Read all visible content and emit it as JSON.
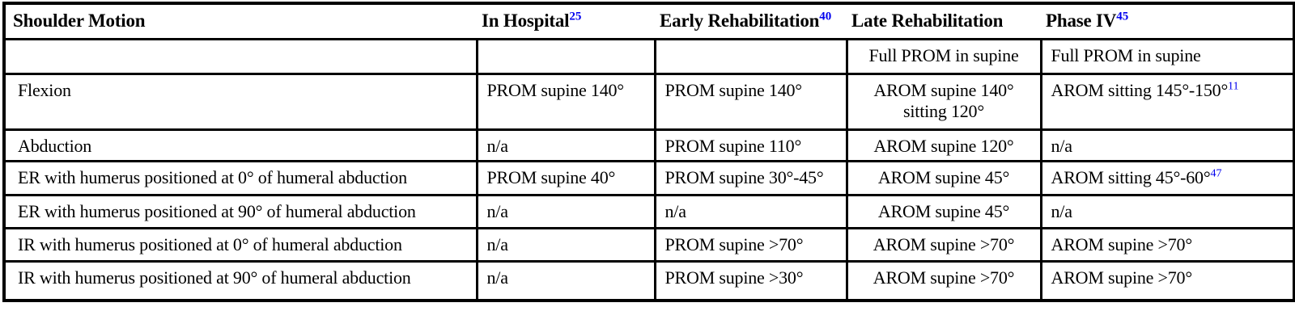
{
  "title": "Shoulder motion range-of-motion goals by rehabilitation phase",
  "colors": {
    "citation": "#0000EE",
    "border": "#000000",
    "text": "#000000",
    "background": "#ffffff"
  },
  "table": {
    "columns": [
      {
        "label": "Shoulder Motion",
        "sup": ""
      },
      {
        "label": "In Hospital",
        "sup": "25"
      },
      {
        "label": "Early Rehabilitation",
        "sup": "40"
      },
      {
        "label": "Late Rehabilitation",
        "sup": ""
      },
      {
        "label": "Phase IV",
        "sup": "45"
      }
    ],
    "rows": [
      {
        "cells": [
          {
            "lines": []
          },
          {
            "lines": []
          },
          {
            "lines": []
          },
          {
            "lines": [
              {
                "text": "Full PROM in supine"
              }
            ]
          },
          {
            "lines": [
              {
                "text": "Full PROM in supine"
              }
            ]
          }
        ]
      },
      {
        "cells": [
          {
            "lines": [
              {
                "text": "Flexion"
              }
            ]
          },
          {
            "lines": [
              {
                "text": "PROM supine 140°"
              }
            ]
          },
          {
            "lines": [
              {
                "text": "PROM supine 140°"
              }
            ]
          },
          {
            "lines": [
              {
                "text": "AROM supine 140°"
              },
              {
                "text": "sitting 120°"
              }
            ]
          },
          {
            "lines": [
              {
                "text": "AROM sitting 145°-150°",
                "sup": "11"
              }
            ]
          }
        ]
      },
      {
        "cells": [
          {
            "lines": [
              {
                "text": "Abduction"
              }
            ]
          },
          {
            "lines": [
              {
                "text": "n/a"
              }
            ]
          },
          {
            "lines": [
              {
                "text": "PROM supine 110°"
              }
            ]
          },
          {
            "lines": [
              {
                "text": "AROM supine 120°"
              }
            ]
          },
          {
            "lines": [
              {
                "text": "n/a"
              }
            ]
          }
        ]
      },
      {
        "cells": [
          {
            "lines": [
              {
                "text": "ER with humerus positioned at 0° of humeral abduction"
              }
            ]
          },
          {
            "lines": [
              {
                "text": "PROM supine 40°"
              }
            ]
          },
          {
            "lines": [
              {
                "text": "PROM supine 30°-45°"
              }
            ]
          },
          {
            "lines": [
              {
                "text": "AROM supine 45°"
              }
            ]
          },
          {
            "lines": [
              {
                "text": "AROM sitting 45°-60°",
                "sup": "47"
              }
            ]
          }
        ]
      },
      {
        "cells": [
          {
            "lines": [
              {
                "text": "ER with humerus positioned at 90° of humeral abduction"
              }
            ]
          },
          {
            "lines": [
              {
                "text": "n/a"
              }
            ]
          },
          {
            "lines": [
              {
                "text": "n/a"
              }
            ]
          },
          {
            "lines": [
              {
                "text": "AROM supine 45°"
              }
            ]
          },
          {
            "lines": [
              {
                "text": "n/a"
              }
            ]
          }
        ]
      },
      {
        "cells": [
          {
            "lines": [
              {
                "text": "IR with humerus positioned at 0° of humeral abduction"
              }
            ]
          },
          {
            "lines": [
              {
                "text": "n/a"
              }
            ]
          },
          {
            "lines": [
              {
                "text": "PROM supine >70°"
              }
            ]
          },
          {
            "lines": [
              {
                "text": "AROM supine >70°"
              }
            ]
          },
          {
            "lines": [
              {
                "text": "AROM supine >70°"
              }
            ]
          }
        ]
      },
      {
        "cells": [
          {
            "lines": [
              {
                "text": "IR with humerus positioned at 90° of humeral abduction"
              }
            ]
          },
          {
            "lines": [
              {
                "text": "n/a"
              }
            ]
          },
          {
            "lines": [
              {
                "text": "PROM supine >30°"
              }
            ]
          },
          {
            "lines": [
              {
                "text": "AROM supine >70°"
              }
            ]
          },
          {
            "lines": [
              {
                "text": "AROM supine >70°"
              }
            ]
          }
        ]
      }
    ]
  }
}
